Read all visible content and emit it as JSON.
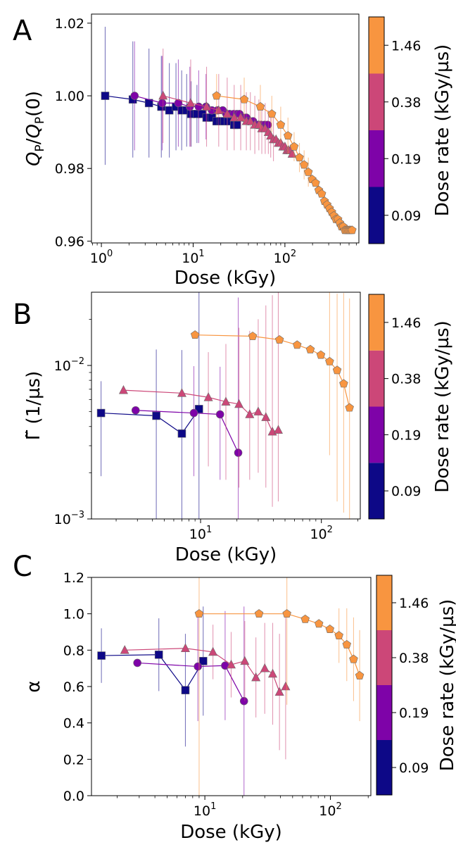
{
  "figure": {
    "colorbar": {
      "title": "Dose rate (kGy/µs)",
      "levels": [
        {
          "label": "0.09",
          "color": "#0d0887"
        },
        {
          "label": "0.19",
          "color": "#7e03a8"
        },
        {
          "label": "0.38",
          "color": "#cc4778"
        },
        {
          "label": "1.46",
          "color": "#f89540"
        }
      ]
    }
  },
  "chart_data": [
    {
      "panel": "A",
      "type": "scatter",
      "xscale": "log",
      "xlabel": "Dose (kGy)",
      "ylabel": "Q_P/Q_P(0)",
      "ylabel_main": "Q",
      "ylabel_sub": "P",
      "ylabel_sep": "/",
      "ylabel_tail": "(0)",
      "xlim": [
        0.78,
        640
      ],
      "ylim": [
        0.9595,
        1.0225
      ],
      "xticks": [
        {
          "value": 1,
          "base": "10",
          "exp": "0"
        },
        {
          "value": 10,
          "base": "10",
          "exp": "1"
        },
        {
          "value": 100,
          "base": "10",
          "exp": "2"
        }
      ],
      "yticks": [
        {
          "value": 0.96,
          "label": "0.96"
        },
        {
          "value": 0.98,
          "label": "0.98"
        },
        {
          "value": 1.0,
          "label": "1.00"
        },
        {
          "value": 1.02,
          "label": "1.02"
        }
      ],
      "series": [
        {
          "name": "0.09",
          "marker": "square",
          "x": [
            1.1,
            2.2,
            3.3,
            4.5,
            5.5,
            6.5,
            7.5,
            8.5,
            9.5,
            11,
            12.5,
            14,
            16,
            18,
            20,
            22,
            24,
            26,
            28,
            30
          ],
          "y": [
            1.0,
            0.999,
            0.998,
            0.997,
            0.996,
            0.997,
            0.996,
            0.996,
            0.995,
            0.995,
            0.995,
            0.994,
            0.994,
            0.993,
            0.993,
            0.993,
            0.993,
            0.993,
            0.992,
            0.992
          ],
          "err": [
            0.019,
            0.016,
            0.015,
            0.014,
            0.013,
            0.012,
            0.011,
            0.01,
            0.009,
            0.008,
            0.0,
            0.0,
            0.0,
            0.0,
            0.0,
            0.0,
            0.0,
            0.0,
            0.0,
            0.0
          ]
        },
        {
          "name": "0.19",
          "marker": "circle",
          "x": [
            2.3,
            4.6,
            6.9,
            9.2,
            11.5,
            13.8,
            16,
            18.4,
            21,
            23,
            25,
            27.6,
            30,
            32,
            35,
            38,
            40,
            45,
            50,
            55,
            60,
            65
          ],
          "y": [
            1.0,
            0.998,
            0.998,
            0.997,
            0.997,
            0.997,
            0.996,
            0.996,
            0.996,
            0.995,
            0.995,
            0.995,
            0.995,
            0.995,
            0.994,
            0.994,
            0.993,
            0.993,
            0.992,
            0.992,
            0.992,
            0.992
          ],
          "err": [
            0.015,
            0.013,
            0.012,
            0.011,
            0.01,
            0.009,
            0.0,
            0.0,
            0.0,
            0.0,
            0.0,
            0.0,
            0.0,
            0.0,
            0.0,
            0.0,
            0.0,
            0.0,
            0.0,
            0.0,
            0.0,
            0.0
          ]
        },
        {
          "name": "0.38",
          "marker": "triangle",
          "x": [
            4.7,
            9.4,
            14,
            19,
            23.5,
            28,
            33,
            38,
            42,
            47,
            52,
            56,
            61,
            66,
            70,
            75,
            80,
            85,
            90,
            95,
            100,
            105,
            110,
            115,
            120
          ],
          "y": [
            1.0,
            0.998,
            0.997,
            0.996,
            0.995,
            0.994,
            0.994,
            0.993,
            0.993,
            0.992,
            0.992,
            0.991,
            0.991,
            0.99,
            0.989,
            0.988,
            0.988,
            0.987,
            0.987,
            0.986,
            0.986,
            0.985,
            0.985,
            0.985,
            0.984
          ],
          "err": [
            0.013,
            0.012,
            0.011,
            0.01,
            0.01,
            0.009,
            0.009,
            0.008,
            0.008,
            0.008,
            0.007,
            0.007,
            0.007,
            0.006,
            0.006,
            0.006,
            0.0,
            0.0,
            0.0,
            0.0,
            0.0,
            0.0,
            0.0,
            0.0,
            0.0
          ]
        },
        {
          "name": "1.46",
          "marker": "pentagon",
          "x": [
            18,
            36,
            54,
            72,
            90,
            108,
            126,
            144,
            162,
            180,
            198,
            216,
            234,
            252,
            270,
            288,
            306,
            324,
            342,
            360,
            378,
            396,
            414,
            432,
            450,
            468,
            486,
            504,
            522,
            540
          ],
          "y": [
            1.0,
            0.999,
            0.997,
            0.995,
            0.992,
            0.989,
            0.986,
            0.983,
            0.981,
            0.979,
            0.977,
            0.976,
            0.974,
            0.973,
            0.971,
            0.97,
            0.969,
            0.968,
            0.967,
            0.966,
            0.966,
            0.965,
            0.964,
            0.964,
            0.963,
            0.963,
            0.963,
            0.963,
            0.963,
            0.963
          ],
          "err": [
            0.006,
            0.006,
            0.006,
            0.005,
            0.005,
            0.005,
            0.004,
            0.004,
            0.004,
            0.004,
            0.0,
            0.0,
            0.0,
            0.0,
            0.0,
            0.0,
            0.0,
            0.0,
            0.0,
            0.0,
            0.0,
            0.0,
            0.0,
            0.0,
            0.0,
            0.0,
            0.0,
            0.0,
            0.0,
            0.0
          ]
        }
      ]
    },
    {
      "panel": "B",
      "type": "scatter",
      "xscale": "log",
      "yscale": "log",
      "xlabel": "Dose (kGy)",
      "ylabel": "Γ̃ (1/µs)",
      "xlim": [
        1.25,
        210
      ],
      "ylim": [
        0.001,
        0.03
      ],
      "xticks": [
        {
          "value": 10,
          "base": "10",
          "exp": "1"
        },
        {
          "value": 100,
          "base": "10",
          "exp": "2"
        }
      ],
      "yticks": [
        {
          "value": 0.001,
          "base": "10",
          "exp": "−3"
        },
        {
          "value": 0.01,
          "base": "10",
          "exp": "−2"
        }
      ],
      "series": [
        {
          "name": "0.09",
          "marker": "square",
          "x": [
            1.5,
            4.3,
            7.0,
            9.7
          ],
          "y": [
            0.0049,
            0.0047,
            0.0036,
            0.0052
          ],
          "errlo": [
            0.003,
            0.0037,
            0.0026,
            0.0042
          ],
          "errhi": [
            0.003,
            0.008,
            0.009,
            0.025
          ]
        },
        {
          "name": "0.19",
          "marker": "circle",
          "x": [
            2.9,
            8.8,
            14.5,
            20.5
          ],
          "y": [
            0.0051,
            0.0049,
            0.0048,
            0.0027
          ],
          "errlo": [
            0.0,
            0.003,
            0.003,
            0.0017
          ],
          "errhi": [
            0.0,
            0.005,
            0.005,
            0.025
          ]
        },
        {
          "name": "0.38",
          "marker": "triangle",
          "x": [
            2.3,
            7.0,
            11.6,
            16.2,
            20.8,
            25.5,
            30,
            34.7,
            39.3,
            44
          ],
          "y": [
            0.0069,
            0.0066,
            0.0062,
            0.0058,
            0.0056,
            0.0048,
            0.005,
            0.0046,
            0.0037,
            0.0038
          ],
          "errlo": [
            0.0,
            0.0,
            0.004,
            0.004,
            0.004,
            0.003,
            0.003,
            0.003,
            0.0025,
            0.0025
          ],
          "errhi": [
            0.0,
            0.0,
            0.006,
            0.008,
            0.012,
            0.012,
            0.015,
            0.02,
            0.025,
            0.03
          ]
        },
        {
          "name": "1.46",
          "marker": "pentagon",
          "x": [
            9,
            27,
            45,
            63,
            81,
            99,
            117,
            135,
            153,
            171
          ],
          "y": [
            0.0158,
            0.0155,
            0.0147,
            0.0136,
            0.0127,
            0.0117,
            0.0106,
            0.0093,
            0.0076,
            0.0053
          ],
          "errlo": [
            0.0,
            0.0,
            0.0,
            0.0,
            0.0,
            0.0,
            0.008,
            0.008,
            0.0065,
            0.0043
          ],
          "errhi": [
            0.0,
            0.0,
            0.0,
            0.0,
            0.0,
            0.0,
            0.02,
            0.02,
            0.022,
            0.022
          ]
        }
      ]
    },
    {
      "panel": "C",
      "type": "scatter",
      "xscale": "log",
      "xlabel": "Dose (kGy)",
      "ylabel": "α",
      "xlim": [
        1.25,
        210
      ],
      "ylim": [
        0.0,
        1.2
      ],
      "xticks": [
        {
          "value": 10,
          "base": "10",
          "exp": "1"
        },
        {
          "value": 100,
          "base": "10",
          "exp": "2"
        }
      ],
      "yticks": [
        {
          "value": 0.0,
          "label": "0.0"
        },
        {
          "value": 0.2,
          "label": "0.2"
        },
        {
          "value": 0.4,
          "label": "0.4"
        },
        {
          "value": 0.6,
          "label": "0.6"
        },
        {
          "value": 0.8,
          "label": "0.8"
        },
        {
          "value": 1.0,
          "label": "1.0"
        },
        {
          "value": 1.2,
          "label": "1.2"
        }
      ],
      "series": [
        {
          "name": "0.09",
          "marker": "square",
          "x": [
            1.5,
            4.3,
            7.0,
            9.7
          ],
          "y": [
            0.77,
            0.775,
            0.58,
            0.74
          ],
          "err": [
            0.15,
            0.2,
            0.31,
            0.3
          ]
        },
        {
          "name": "0.19",
          "marker": "circle",
          "x": [
            2.9,
            8.8,
            14.5,
            20.5
          ],
          "y": [
            0.73,
            0.71,
            0.715,
            0.52
          ],
          "err": [
            0.0,
            0.3,
            0.3,
            0.52
          ]
        },
        {
          "name": "0.38",
          "marker": "triangle",
          "x": [
            2.3,
            7.0,
            11.6,
            16.2,
            20.8,
            25.5,
            30,
            34.7,
            39.3,
            44
          ],
          "y": [
            0.8,
            0.81,
            0.79,
            0.72,
            0.74,
            0.65,
            0.7,
            0.67,
            0.57,
            0.6
          ],
          "err": [
            0.0,
            0.0,
            0.15,
            0.18,
            0.22,
            0.22,
            0.25,
            0.28,
            0.32,
            0.4
          ]
        },
        {
          "name": "1.46",
          "marker": "pentagon",
          "x": [
            9,
            27,
            45,
            63,
            81,
            99,
            117,
            135,
            153,
            171
          ],
          "y": [
            1.0,
            1.0,
            1.0,
            0.97,
            0.945,
            0.915,
            0.88,
            0.83,
            0.75,
            0.66
          ],
          "err": [
            1.0,
            0.0,
            0.5,
            0.0,
            0.0,
            0.0,
            0.15,
            0.2,
            0.23,
            0.25
          ]
        }
      ]
    }
  ]
}
